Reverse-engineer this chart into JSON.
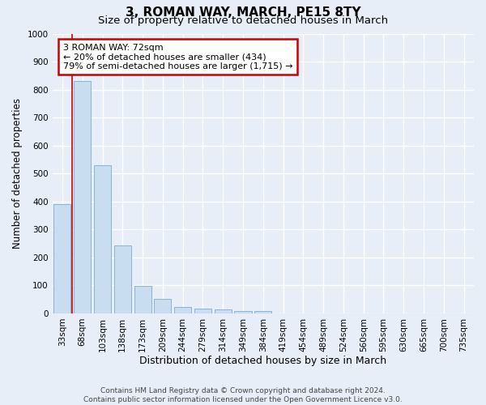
{
  "title": "3, ROMAN WAY, MARCH, PE15 8TY",
  "subtitle": "Size of property relative to detached houses in March",
  "xlabel": "Distribution of detached houses by size in March",
  "ylabel": "Number of detached properties",
  "bin_labels": [
    "33sqm",
    "68sqm",
    "103sqm",
    "138sqm",
    "173sqm",
    "209sqm",
    "244sqm",
    "279sqm",
    "314sqm",
    "349sqm",
    "384sqm",
    "419sqm",
    "454sqm",
    "489sqm",
    "524sqm",
    "560sqm",
    "595sqm",
    "630sqm",
    "665sqm",
    "700sqm",
    "735sqm"
  ],
  "bar_values": [
    390,
    830,
    530,
    242,
    97,
    52,
    22,
    17,
    15,
    10,
    8,
    0,
    0,
    0,
    0,
    0,
    0,
    0,
    0,
    0,
    0
  ],
  "bar_color": "#c8ddf0",
  "bar_edge_color": "#8ab4d4",
  "vline_color": "#cc0000",
  "annotation_text": "3 ROMAN WAY: 72sqm\n← 20% of detached houses are smaller (434)\n79% of semi-detached houses are larger (1,715) →",
  "annotation_box_color": "#ffffff",
  "annotation_box_edge": "#cc0000",
  "ylim": [
    0,
    1000
  ],
  "yticks": [
    0,
    100,
    200,
    300,
    400,
    500,
    600,
    700,
    800,
    900,
    1000
  ],
  "bg_color": "#e8eef8",
  "plot_bg_color": "#e8eef8",
  "grid_color": "#ffffff",
  "footer": "Contains HM Land Registry data © Crown copyright and database right 2024.\nContains public sector information licensed under the Open Government Licence v3.0.",
  "title_fontsize": 11,
  "subtitle_fontsize": 9.5,
  "xlabel_fontsize": 9,
  "ylabel_fontsize": 8.5,
  "tick_fontsize": 7.5,
  "footer_fontsize": 6.5
}
